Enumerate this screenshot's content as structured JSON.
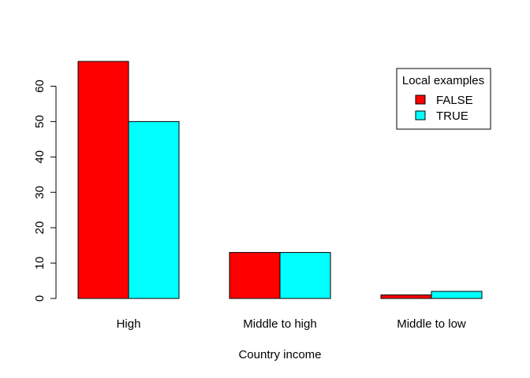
{
  "chart_data": {
    "type": "bar",
    "title": "",
    "xlabel": "Country income",
    "ylabel": "",
    "categories": [
      "High",
      "Middle to high",
      "Middle to low"
    ],
    "series": [
      {
        "name": "FALSE",
        "color": "#ff0000",
        "values": [
          67,
          13,
          1
        ]
      },
      {
        "name": "TRUE",
        "color": "#00ffff",
        "values": [
          50,
          13,
          2
        ]
      }
    ],
    "ylim": [
      0,
      67
    ],
    "yticks": [
      0,
      10,
      20,
      30,
      40,
      50,
      60
    ],
    "grid": false,
    "legend": {
      "title": "Local examples",
      "position": "top-right"
    }
  }
}
